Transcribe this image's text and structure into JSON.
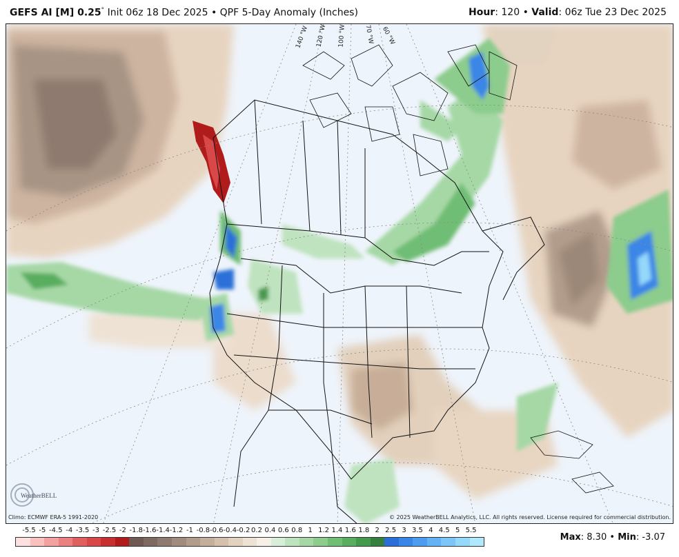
{
  "header": {
    "model": "GEFS AI [M] 0.25",
    "degree": "°",
    "init_label": "Init 06z 18 Dec 2025",
    "bullet": "•",
    "product": "QPF 5-Day Anomaly (Inches)",
    "hour_label": "Hour",
    "hour_value": ": 120",
    "valid_label": "Valid",
    "valid_value": ": 06z Tue 23 Dec 2025"
  },
  "map": {
    "longitude_labels": [
      "140 °W",
      "120 °W",
      "100 °W",
      "70 °W",
      "60 °W"
    ],
    "logo_text": "WeatherBELL"
  },
  "credits": {
    "climo": "Climo: ECMWF ERA-5 1991-2020",
    "copyright": "© 2025 WeatherBELL Analytics, LLC. All rights reserved. License required for commercial distribution."
  },
  "legend": {
    "labels": [
      "-5.5",
      "-5",
      "-4.5",
      "-4",
      "-3.5",
      "-3",
      "-2.5",
      "-2",
      "-1.8",
      "-1.6",
      "-1.4",
      "-1.2",
      "-1",
      "-0.8",
      "-0.6",
      "-0.4",
      "-0.2",
      "0.2",
      "0.4",
      "0.6",
      "0.8",
      "1",
      "1.2",
      "1.4",
      "1.6",
      "1.8",
      "2",
      "2.5",
      "3",
      "3.5",
      "4",
      "4.5",
      "5",
      "5.5"
    ],
    "colors": [
      "#fde0e0",
      "#f9c0c0",
      "#f2a0a0",
      "#ea8080",
      "#e06060",
      "#d84848",
      "#c83030",
      "#b01c1c",
      "#6e5a52",
      "#7d6a60",
      "#8e7a6e",
      "#a08c7e",
      "#b29c8c",
      "#c4ae9c",
      "#d4c0ac",
      "#e2d2c0",
      "#eee2d4",
      "#f6f0e8",
      "#d8eed8",
      "#bfe3bf",
      "#a6d8a6",
      "#8ccc8c",
      "#70bd74",
      "#58ad5e",
      "#449a4c",
      "#34803e",
      "#2a6fd8",
      "#3a86e6",
      "#4e9cef",
      "#64b2f4",
      "#7cc6f7",
      "#94d8fa",
      "#b0e8fc"
    ]
  },
  "stats": {
    "max_label": "Max",
    "max_value": ": 8.30",
    "min_label": "Min",
    "min_value": ": -3.07"
  }
}
